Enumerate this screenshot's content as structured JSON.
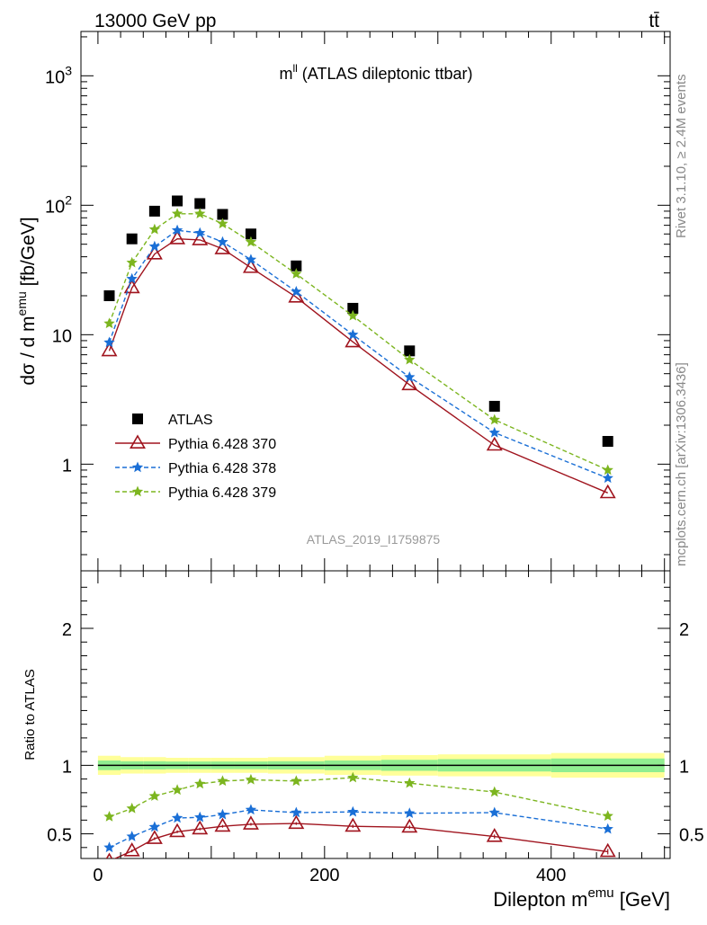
{
  "header": {
    "energy_label": "13000 GeV pp",
    "process_label": "tt̄"
  },
  "side_labels": {
    "rivet": "Rivet 3.1.10, ≥ 2.4M events",
    "source": "mcplots.cern.ch [arXiv:1306.3436]"
  },
  "chart_data": [
    {
      "type": "scatter",
      "title": "m^ll (ATLAS dileptonic ttbar)",
      "title_main": "m",
      "title_sup": "ll",
      "title_rest": " (ATLAS dileptonic ttbar)",
      "ylabel": "dσ / d m^emu [fb/GeV]",
      "ylabel_main": "dσ / d m",
      "ylabel_sup": "emu",
      "ylabel_unit": " [fb/GeV]",
      "yscale": "log",
      "ylim": [
        0.15,
        2200
      ],
      "xlim": [
        -15,
        505
      ],
      "ytick_labels": [
        "1",
        "10",
        "10",
        "10"
      ],
      "ytick_sup": [
        "",
        "",
        "2",
        "3"
      ],
      "watermark": "ATLAS_2019_I1759875",
      "legend_position": "bottom-left",
      "x": [
        10,
        30,
        50,
        70,
        90,
        110,
        135,
        175,
        225,
        275,
        350,
        450
      ],
      "series": [
        {
          "name": "ATLAS",
          "color": "#000000",
          "marker": "square",
          "line": "none",
          "values": [
            20,
            55,
            90,
            108,
            103,
            85,
            60,
            34,
            16,
            7.5,
            2.8,
            1.5
          ]
        },
        {
          "name": "Pythia 6.428 370",
          "color": "#a0141e",
          "marker": "open-triangle",
          "line": "solid",
          "values": [
            7.5,
            23,
            42,
            55,
            54,
            46,
            33,
            19.5,
            8.8,
            4.1,
            1.4,
            0.6
          ]
        },
        {
          "name": "Pythia 6.428 378",
          "color": "#1a6fd6",
          "marker": "star",
          "line": "dashed",
          "values": [
            8.7,
            27,
            48,
            64,
            61,
            52,
            38,
            21.5,
            10,
            4.7,
            1.75,
            0.78
          ]
        },
        {
          "name": "Pythia 6.428 379",
          "color": "#7cb51f",
          "marker": "star",
          "line": "dashed",
          "values": [
            12.2,
            36,
            65,
            86,
            86,
            72,
            52,
            29.5,
            14,
            6.4,
            2.2,
            0.9
          ]
        }
      ]
    },
    {
      "type": "scatter",
      "ylabel": "Ratio to ATLAS",
      "xlabel": "Dilepton m^emu [GeV]",
      "xlabel_main": "Dilepton m",
      "xlabel_sup": "emu",
      "xlabel_unit": " [GeV]",
      "xlim": [
        -15,
        505
      ],
      "ylim": [
        0.32,
        2.42
      ],
      "ytick_labels": [
        "0.5",
        "1",
        "2"
      ],
      "xtick_labels": [
        "0",
        "200",
        "400"
      ],
      "band_edges": [
        0,
        20,
        40,
        60,
        80,
        100,
        120,
        150,
        200,
        250,
        300,
        400,
        500
      ],
      "band_inner": [
        0.035,
        0.03,
        0.03,
        0.028,
        0.028,
        0.028,
        0.028,
        0.03,
        0.035,
        0.04,
        0.045,
        0.05
      ],
      "band_outer": [
        0.07,
        0.06,
        0.06,
        0.055,
        0.055,
        0.055,
        0.055,
        0.06,
        0.07,
        0.075,
        0.08,
        0.09
      ],
      "band_colors": {
        "inner": "#90ee90",
        "outer": "#ffff99"
      },
      "x": [
        10,
        30,
        50,
        70,
        90,
        110,
        135,
        175,
        225,
        275,
        350,
        450
      ],
      "series": [
        {
          "name": "Pythia 6.428 370",
          "color": "#a0141e",
          "marker": "open-triangle",
          "line": "solid",
          "values": [
            0.3,
            0.375,
            0.465,
            0.515,
            0.535,
            0.555,
            0.57,
            0.575,
            0.555,
            0.548,
            0.48,
            0.37
          ],
          "errors": [
            0.01,
            0.01,
            0.01,
            0.01,
            0.01,
            0.01,
            0.01,
            0.01,
            0.012,
            0.013,
            0.015,
            0.02
          ]
        },
        {
          "name": "Pythia 6.428 378",
          "color": "#1a6fd6",
          "marker": "star",
          "line": "dashed",
          "values": [
            0.4,
            0.48,
            0.55,
            0.615,
            0.62,
            0.64,
            0.675,
            0.655,
            0.66,
            0.65,
            0.655,
            0.535
          ],
          "errors": [
            0.015,
            0.01,
            0.01,
            0.01,
            0.01,
            0.01,
            0.01,
            0.01,
            0.012,
            0.013,
            0.015,
            0.02
          ]
        },
        {
          "name": "Pythia 6.428 379",
          "color": "#7cb51f",
          "marker": "star",
          "line": "dashed",
          "values": [
            0.625,
            0.685,
            0.775,
            0.82,
            0.865,
            0.885,
            0.895,
            0.885,
            0.91,
            0.87,
            0.805,
            0.63
          ],
          "errors": [
            0.015,
            0.01,
            0.01,
            0.01,
            0.01,
            0.01,
            0.01,
            0.01,
            0.012,
            0.013,
            0.015,
            0.02
          ]
        }
      ]
    }
  ]
}
